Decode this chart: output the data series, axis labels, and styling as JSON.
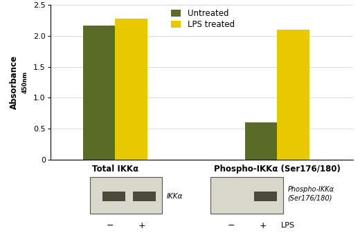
{
  "groups": [
    "Total IKKα",
    "Phospho-IKKα (Ser176/180)"
  ],
  "untreated_values": [
    2.17,
    0.6
  ],
  "lps_values": [
    2.28,
    2.1
  ],
  "untreated_color": "#5a6b28",
  "lps_color": "#e8c800",
  "ylabel_main": "Absorbance",
  "ylabel_sub": "450nm",
  "ylim": [
    0,
    2.5
  ],
  "yticks": [
    0,
    0.5,
    1.0,
    1.5,
    2.0,
    2.5
  ],
  "ytick_labels": [
    "0",
    "0.5",
    "1.0",
    "1.5",
    "2.0",
    "2.5"
  ],
  "legend_untreated": "Untreated",
  "legend_lps": "LPS treated",
  "bar_width": 0.3,
  "group_positions": [
    1.0,
    2.5
  ],
  "bg_color": "#ffffff",
  "blot1_label": "IKKα",
  "blot2_label": "Phospho-IKKα\n(Ser176/180)",
  "blot_minus": "−",
  "blot_plus": "+",
  "blot_lps": "LPS"
}
